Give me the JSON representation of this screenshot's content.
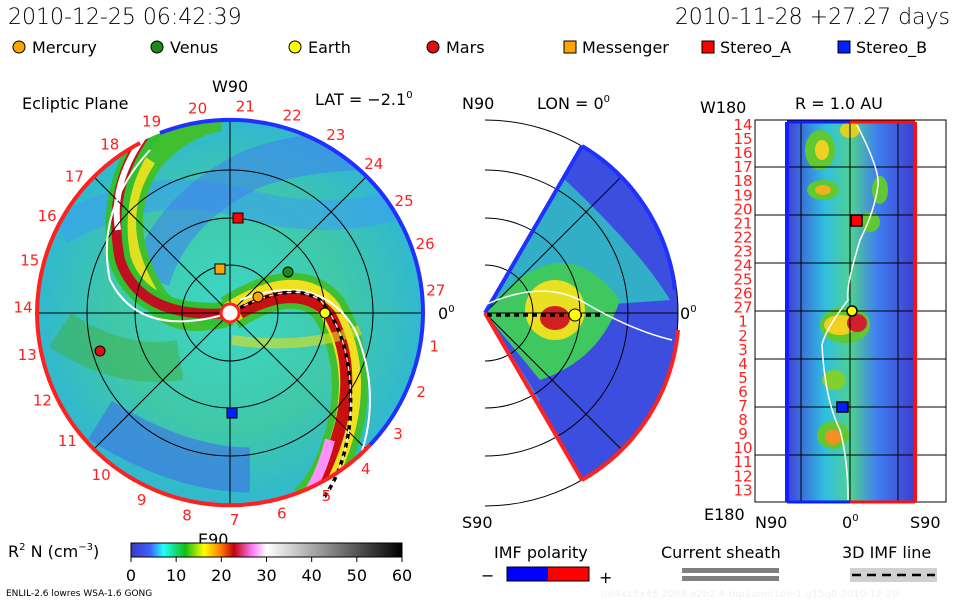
{
  "header": {
    "timestamp": "2010-12-25 06:42:39",
    "reference": "2010-11-28 +27.27 days"
  },
  "legend": {
    "bodies": [
      {
        "label": "Mercury",
        "shape": "circle",
        "color": "#ffa500"
      },
      {
        "label": "Venus",
        "shape": "circle",
        "color": "#1a8a1a"
      },
      {
        "label": "Earth",
        "shape": "circle",
        "color": "#ffff00"
      },
      {
        "label": "Mars",
        "shape": "circle",
        "color": "#e01010"
      },
      {
        "label": "Messenger",
        "shape": "square",
        "color": "#ffa500"
      },
      {
        "label": "Stereo_A",
        "shape": "square",
        "color": "#ff0000"
      },
      {
        "label": "Stereo_B",
        "shape": "square",
        "color": "#0020ff"
      }
    ]
  },
  "panel_ecliptic": {
    "title": "Ecliptic Plane",
    "top_label": "W90",
    "bottom_label": "E90",
    "right_label": "0",
    "right_label_sup": "0",
    "lat_label": "LAT = −2.1",
    "lat_sup": "0",
    "day_labels": [
      "1",
      "2",
      "3",
      "4",
      "5",
      "6",
      "7",
      "8",
      "9",
      "10",
      "11",
      "12",
      "13",
      "14",
      "15",
      "16",
      "17",
      "18",
      "19",
      "20",
      "21",
      "22",
      "23",
      "24",
      "25",
      "26",
      "27"
    ]
  },
  "panel_meridional": {
    "top_label": "N90",
    "bottom_label": "S90",
    "lon_label": "LON = 0",
    "lon_sup": "0",
    "right_label": "0",
    "right_label_sup": "0"
  },
  "panel_sphere": {
    "title": "R = 1.0 AU",
    "top_left": "W180",
    "bottom_left": "E180",
    "x_labels": [
      "N90",
      "0",
      "S90"
    ],
    "x_mid_sup": "0",
    "day_labels": [
      "14",
      "15",
      "16",
      "17",
      "18",
      "19",
      "20",
      "21",
      "22",
      "23",
      "24",
      "25",
      "26",
      "27",
      "1",
      "2",
      "3",
      "4",
      "5",
      "6",
      "7",
      "8",
      "9",
      "10",
      "11",
      "12",
      "13"
    ]
  },
  "colorbar": {
    "label": "R",
    "label_sup": "2",
    "label_rest": " N (cm",
    "unit_sup": "−3",
    "label_end": ")",
    "ticks": [
      "0",
      "10",
      "20",
      "30",
      "40",
      "50",
      "60"
    ]
  },
  "imf": {
    "title": "IMF polarity",
    "minus": "−",
    "plus": "+",
    "negative_color": "#0000ff",
    "positive_color": "#ff0000"
  },
  "current_sheath": {
    "title": "Current sheath"
  },
  "imf_line": {
    "title": "3D IMF line"
  },
  "footer": {
    "model": "ENLIL-2.6 lowres WSA-1.6 GONG",
    "run_id": ".//64x15x45.2068-a2b2.4-mp1umn1de-1.g15q0   2010-12-20"
  },
  "chart_data": {
    "type": "heatmap",
    "title": "",
    "quantity": "R2 N (cm-3)",
    "colorscale_range": [
      0,
      60
    ],
    "colorbar_ticks": [
      0,
      10,
      20,
      30,
      40,
      50,
      60
    ],
    "panels": [
      "Ecliptic Plane",
      "LON = 0 meridional",
      "R = 1.0 AU sphere"
    ],
    "lat": -2.1,
    "lon": 0,
    "radius_au": 1.0,
    "elapsed_days": 27.27
  }
}
